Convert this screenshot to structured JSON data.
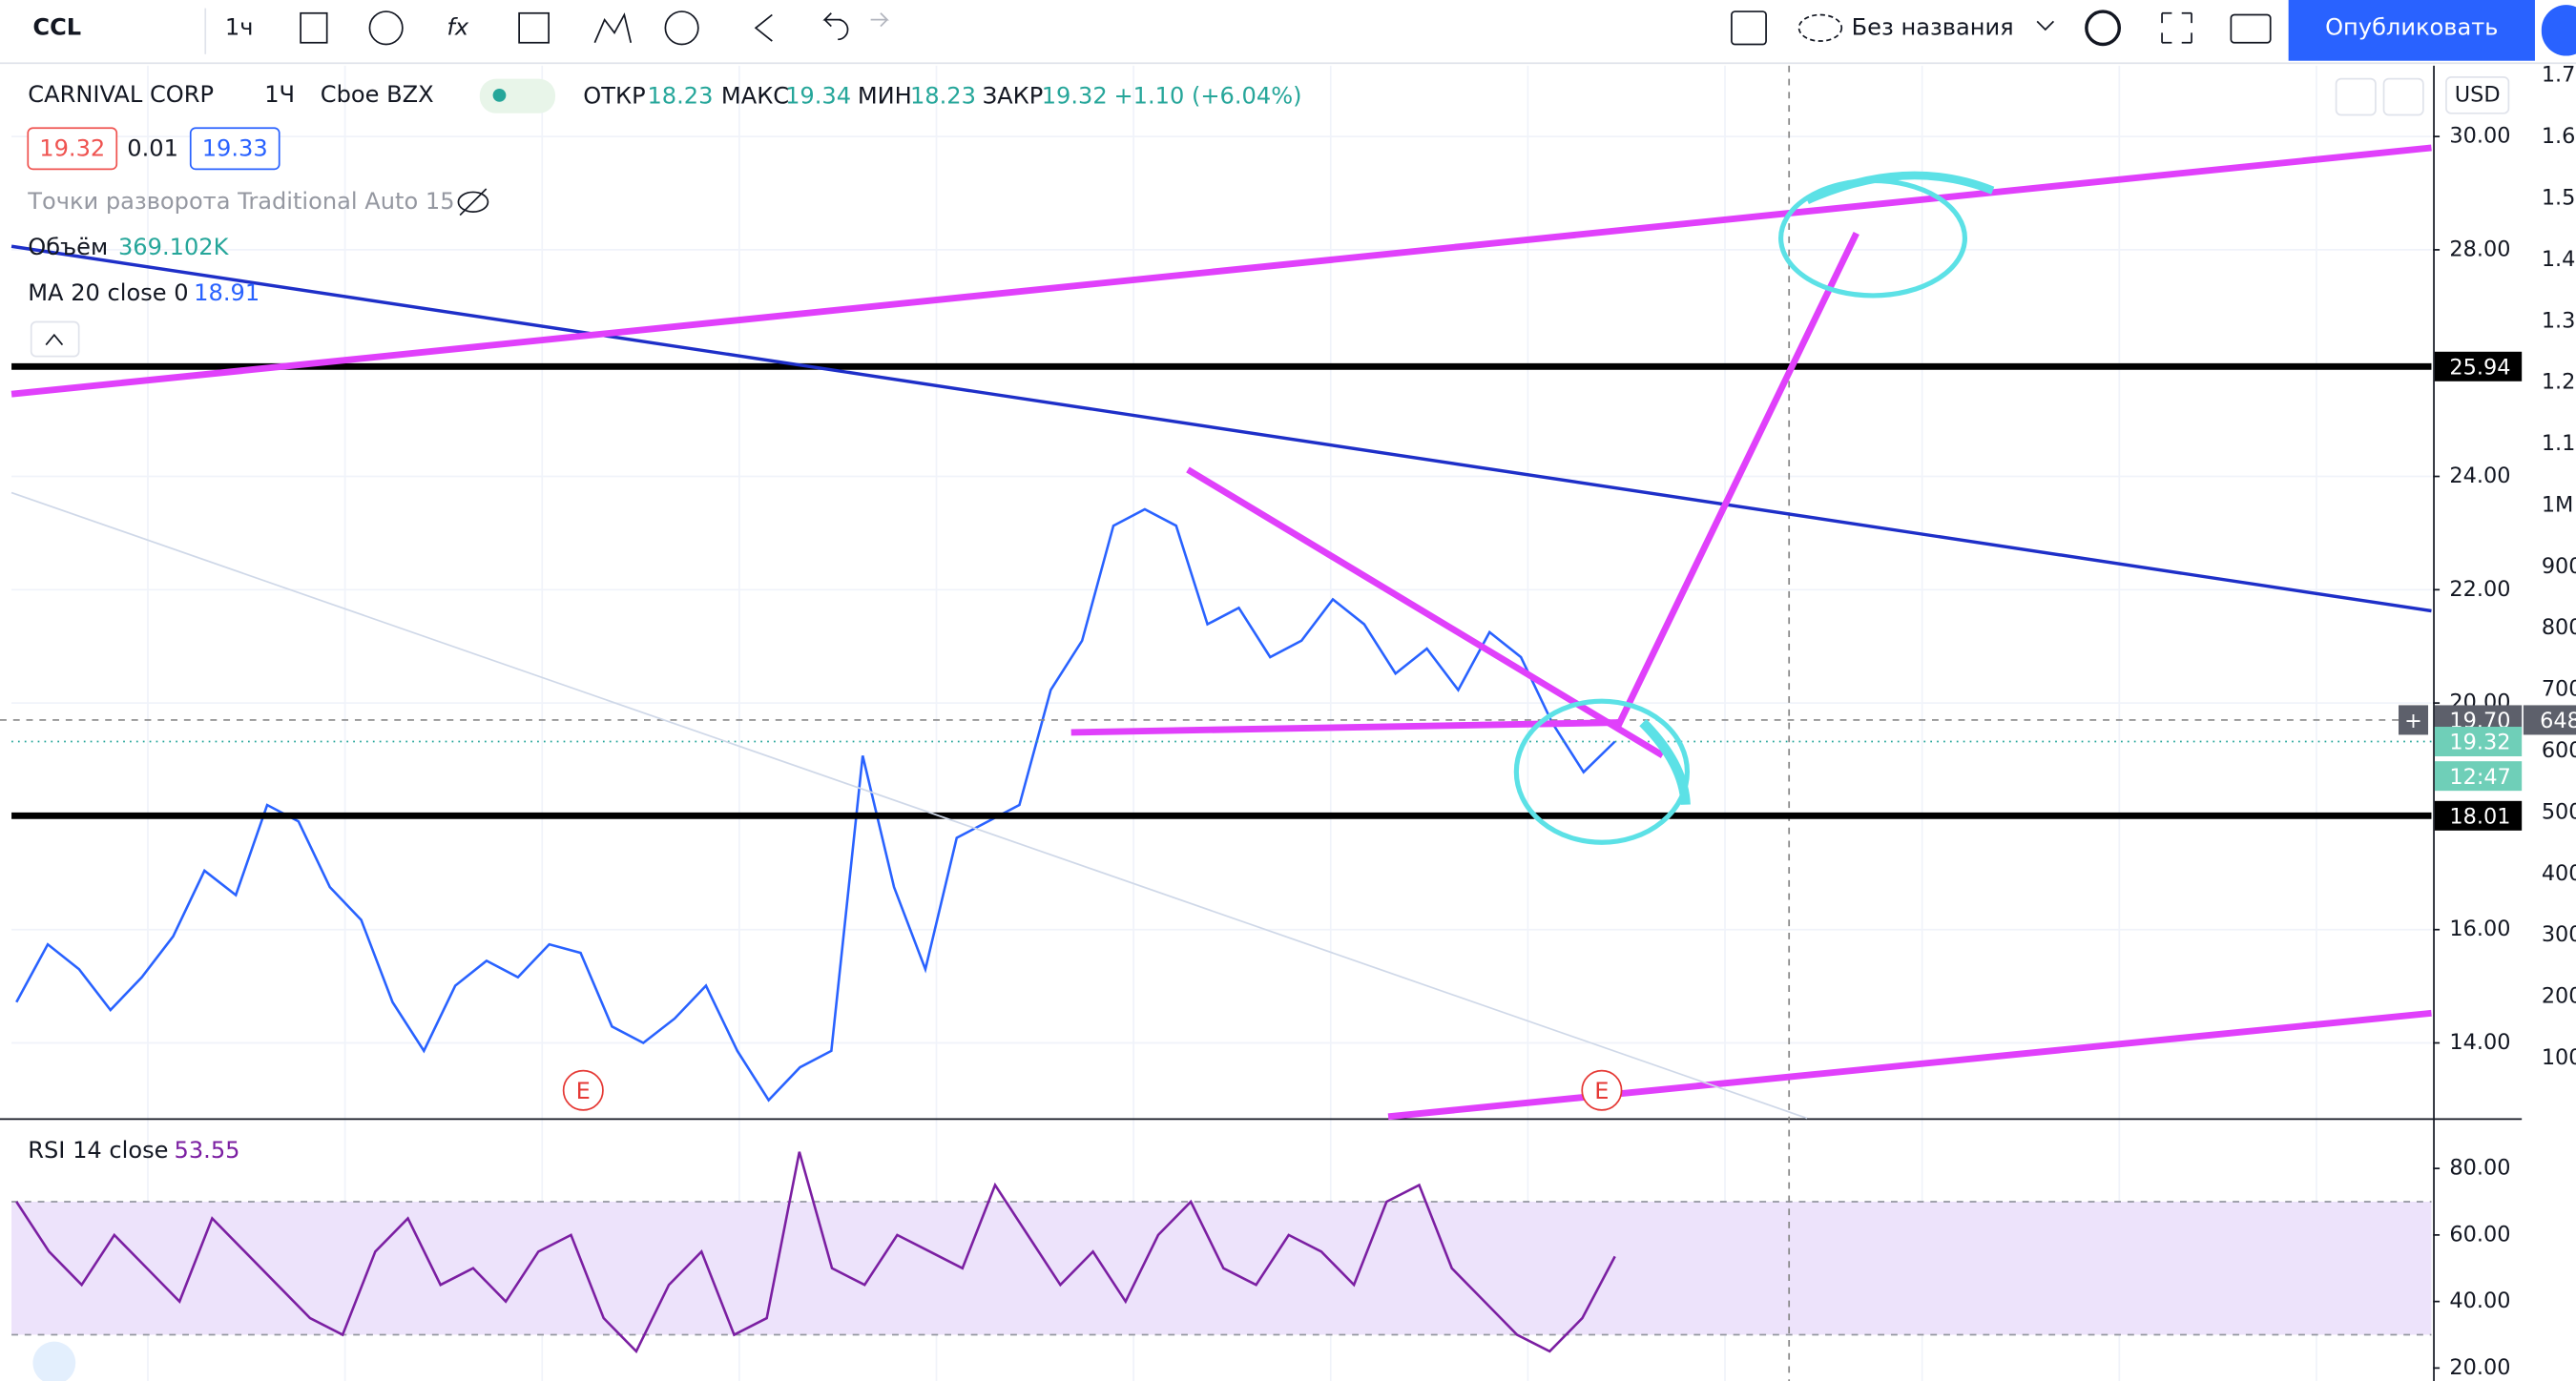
{
  "toolbar": {
    "symbol": "CCL",
    "interval": "1ч",
    "layout_name": "Без названия",
    "publish": "Опубликовать"
  },
  "legend": {
    "name": "CARNIVAL CORP",
    "interval": "1Ч",
    "exchange": "Cboe BZX",
    "ohlc": [
      [
        "ОТКР",
        "18.23"
      ],
      [
        "МАКС",
        "19.34"
      ],
      [
        "МИН",
        "18.23"
      ],
      [
        "ЗАКР",
        "19.32"
      ]
    ],
    "change": "+1.10 (+6.04%)",
    "bid": "19.32",
    "spread": "0.01",
    "ask": "19.33",
    "pivots": "Точки разворота Traditional Auto 15",
    "volume": [
      "Объём",
      "369.102K"
    ],
    "ma": [
      "MA 20 close 0",
      "18.91"
    ],
    "rsi": [
      "RSI 14 close",
      "53.55"
    ]
  },
  "currency": "USD",
  "earnings": [
    "E",
    "E"
  ],
  "volume_axis": [
    "1.7",
    "1.6",
    "1.5",
    "1.4",
    "1.3",
    "1.2",
    "1.1",
    "1M",
    "900",
    "800",
    "700",
    "600",
    "500",
    "400",
    "300",
    "200",
    "100"
  ],
  "volume_label": "648",
  "countdown": "12:47",
  "chart_data": [
    {
      "type": "line",
      "color": "#2962ff",
      "values": [
        14.72,
        15.74,
        15.3,
        14.58,
        15.16,
        15.88,
        17.04,
        16.61,
        18.2,
        17.91,
        16.75,
        16.17,
        14.72,
        13.86,
        15.01,
        15.45,
        15.16,
        15.74,
        15.59,
        14.29,
        14.0,
        14.43,
        15.01,
        13.86,
        12.99,
        13.57,
        13.86,
        19.07,
        16.75,
        15.3,
        17.62,
        17.91,
        18.2,
        20.23,
        21.1,
        23.13,
        23.42,
        23.13,
        21.39,
        21.68,
        20.81,
        21.1,
        21.83,
        21.39,
        20.52,
        20.96,
        20.23,
        21.25,
        20.81,
        19.65,
        18.78,
        19.32
      ],
      "ylim": [
        12.67,
        31.25
      ],
      "yticks": [
        {
          "value": 14,
          "label": "14.00"
        },
        {
          "value": 16,
          "label": "16.00"
        },
        {
          "value": 20,
          "label": "20.00"
        },
        {
          "value": 22,
          "label": "22.00"
        },
        {
          "value": 24,
          "label": "24.00"
        },
        {
          "value": 28,
          "label": "28.00"
        },
        {
          "value": 30,
          "label": "30.00"
        }
      ],
      "grid": true,
      "levels": [
        25.94,
        {
          "value": 19.7,
          "label": "19.70"
        },
        19.32,
        18.01
      ],
      "level_colors": [
        "#000000",
        "#5d606b",
        "#6fcfb8",
        "#000000"
      ]
    },
    {
      "type": "line",
      "color": "#7b1fa2",
      "values": [
        70,
        55,
        45,
        60,
        50,
        40,
        65,
        55,
        45,
        35,
        30,
        55,
        65,
        45,
        50,
        40,
        55,
        60,
        35,
        25,
        45,
        55,
        30,
        35,
        85,
        50,
        45,
        60,
        55,
        50,
        75,
        60,
        45,
        55,
        40,
        60,
        70,
        50,
        45,
        60,
        55,
        45,
        70,
        75,
        50,
        40,
        30,
        25,
        35,
        53.55
      ],
      "ylim": [
        16.1,
        94.1
      ],
      "yticks": [
        {
          "value": 20,
          "label": "20.00"
        },
        {
          "value": 40,
          "label": "40.00"
        },
        {
          "value": 60,
          "label": "60.00"
        },
        {
          "value": 80,
          "label": "80.00"
        }
      ],
      "band": [
        30,
        70
      ],
      "band_color": "#ede3fb"
    }
  ]
}
